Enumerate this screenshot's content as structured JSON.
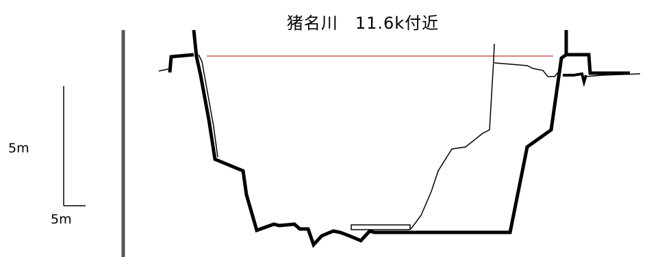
{
  "title": "猪名川　11.6k付近",
  "scale": {
    "vertical_label": "5m",
    "horizontal_label": "5m"
  },
  "colors": {
    "ground": "#000000",
    "water_level": "#c0392b",
    "axis": "#555555"
  }
}
